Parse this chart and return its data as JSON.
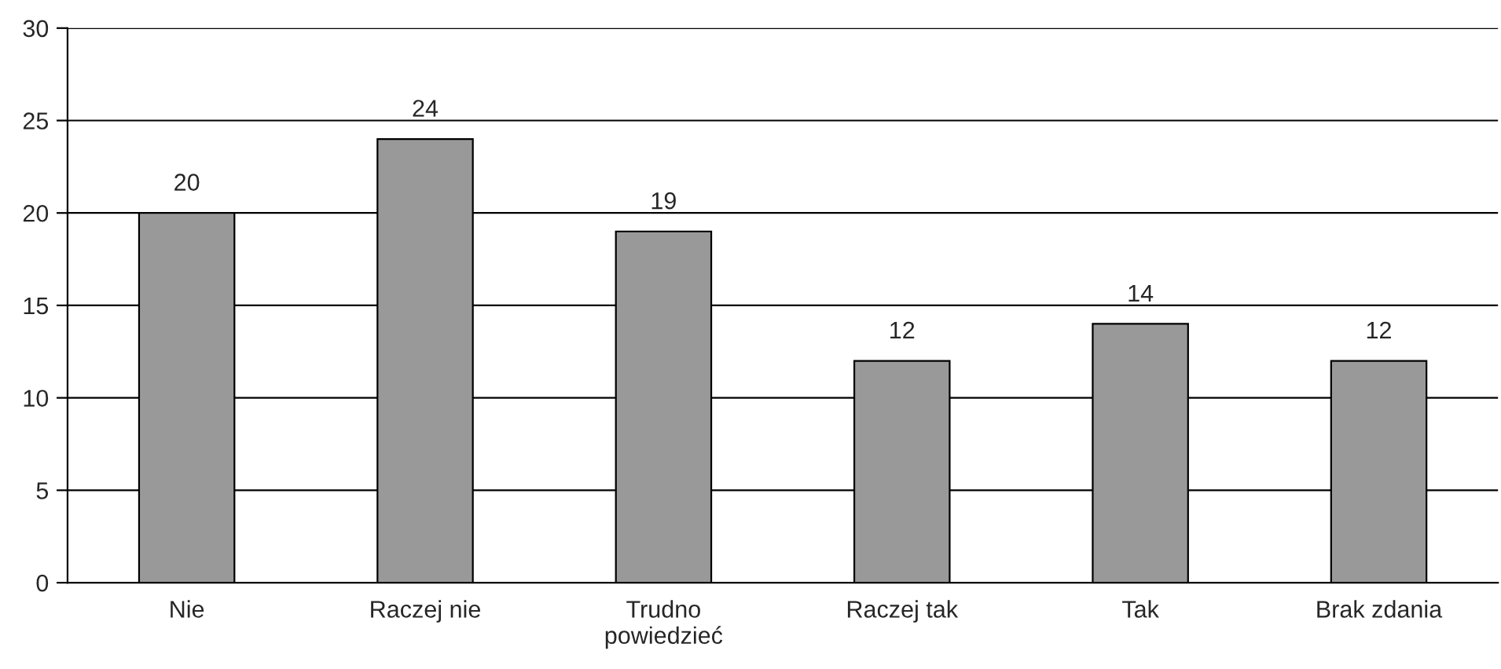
{
  "chart_data": {
    "type": "bar",
    "categories": [
      "Nie",
      "Raczej nie",
      "Trudno\npowiedzieć",
      "Raczej tak",
      "Tak",
      "Brak zdania"
    ],
    "values": [
      20,
      24,
      19,
      12,
      14,
      12
    ],
    "color": "#999999",
    "ylim": [
      0,
      30
    ],
    "yticks": [
      0,
      5,
      10,
      15,
      20,
      25,
      30
    ],
    "grid": "y",
    "data_labels": true,
    "legend": false
  }
}
